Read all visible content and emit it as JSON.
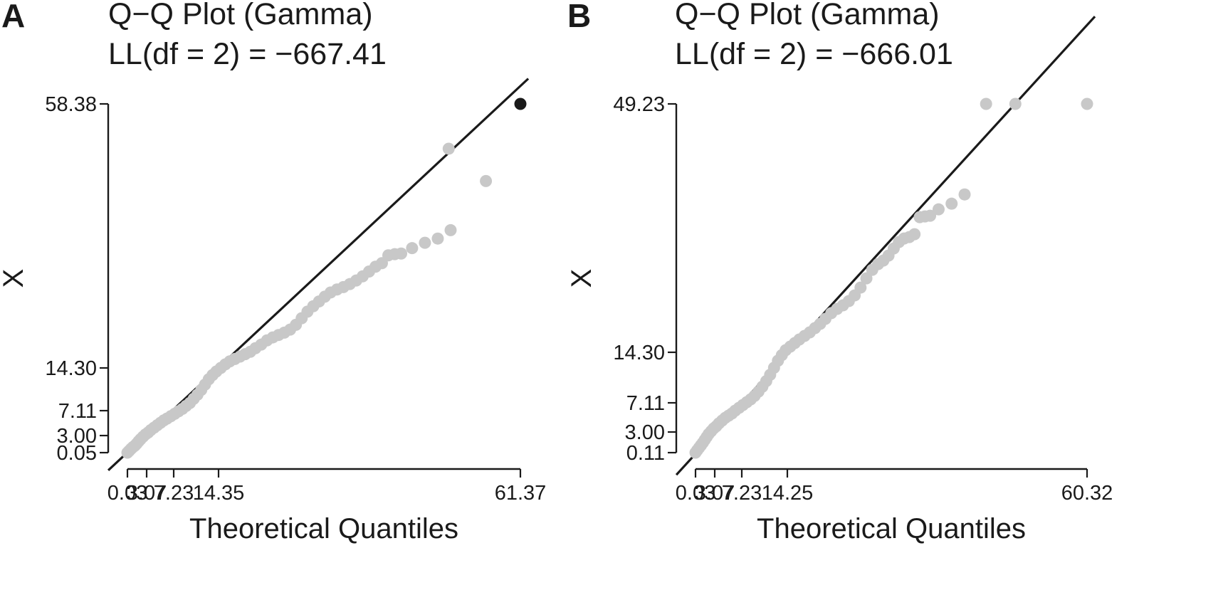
{
  "chart_data": [
    {
      "type": "scatter",
      "panel_label": "A",
      "title": "Q−Q Plot (Gamma)",
      "subtitle": "LL(df = 2) = −667.41",
      "xlabel": "Theoretical Quantiles",
      "ylabel": "X",
      "xlim": [
        0.03,
        61.37
      ],
      "ylim": [
        0.05,
        58.38
      ],
      "x_ticks": [
        0.03,
        3.07,
        7.23,
        14.35,
        61.37
      ],
      "x_tick_labels": [
        "0.03",
        "3.07",
        "7.23",
        "14.35",
        "61.37"
      ],
      "y_ticks": [
        0.05,
        3.0,
        7.11,
        14.3,
        58.38
      ],
      "y_tick_labels": [
        "0.05",
        "3.00",
        "7.11",
        "14.30",
        "58.38"
      ],
      "reference_line": "y = x",
      "point_color": "#c8c8c8",
      "highlight_color": "#1a1a1a",
      "highlight_points": [
        [
          61.37,
          58.38
        ]
      ],
      "points": [
        [
          0.03,
          0.05
        ],
        [
          0.3,
          0.35
        ],
        [
          0.6,
          0.7
        ],
        [
          0.9,
          1.0
        ],
        [
          1.2,
          1.25
        ],
        [
          1.5,
          1.6
        ],
        [
          1.8,
          2.0
        ],
        [
          2.1,
          2.35
        ],
        [
          2.5,
          2.8
        ],
        [
          2.9,
          3.2
        ],
        [
          3.3,
          3.5
        ],
        [
          3.7,
          3.9
        ],
        [
          4.2,
          4.3
        ],
        [
          4.7,
          4.7
        ],
        [
          5.2,
          5.1
        ],
        [
          5.7,
          5.5
        ],
        [
          6.2,
          5.8
        ],
        [
          6.8,
          6.2
        ],
        [
          7.4,
          6.6
        ],
        [
          8.0,
          7.0
        ],
        [
          8.6,
          7.4
        ],
        [
          9.2,
          7.9
        ],
        [
          9.8,
          8.4
        ],
        [
          10.4,
          9.1
        ],
        [
          11.0,
          9.8
        ],
        [
          11.6,
          10.6
        ],
        [
          12.2,
          11.5
        ],
        [
          12.8,
          12.4
        ],
        [
          13.4,
          13.1
        ],
        [
          14.0,
          13.7
        ],
        [
          14.7,
          14.3
        ],
        [
          15.4,
          14.9
        ],
        [
          16.1,
          15.4
        ],
        [
          16.9,
          15.8
        ],
        [
          17.7,
          16.2
        ],
        [
          18.5,
          16.6
        ],
        [
          19.3,
          17.0
        ],
        [
          20.1,
          17.6
        ],
        [
          21.0,
          18.2
        ],
        [
          21.9,
          18.9
        ],
        [
          22.8,
          19.4
        ],
        [
          23.7,
          19.8
        ],
        [
          24.6,
          20.2
        ],
        [
          25.5,
          20.7
        ],
        [
          26.4,
          21.5
        ],
        [
          27.3,
          22.6
        ],
        [
          28.2,
          23.7
        ],
        [
          29.1,
          24.6
        ],
        [
          30.0,
          25.4
        ],
        [
          30.9,
          26.2
        ],
        [
          31.8,
          26.9
        ],
        [
          32.8,
          27.4
        ],
        [
          33.8,
          27.8
        ],
        [
          34.8,
          28.3
        ],
        [
          35.8,
          28.9
        ],
        [
          36.8,
          29.6
        ],
        [
          37.8,
          30.4
        ],
        [
          38.8,
          31.2
        ],
        [
          39.8,
          31.8
        ],
        [
          40.8,
          33.1
        ],
        [
          41.8,
          33.3
        ],
        [
          42.8,
          33.4
        ],
        [
          44.5,
          34.3
        ],
        [
          46.5,
          35.2
        ],
        [
          48.5,
          35.9
        ],
        [
          50.5,
          37.3
        ],
        [
          56.0,
          45.5
        ],
        [
          50.2,
          50.9
        ]
      ]
    },
    {
      "type": "scatter",
      "panel_label": "B",
      "title": "Q−Q Plot (Gamma)",
      "subtitle": "LL(df = 2) = −666.01",
      "xlabel": "Theoretical Quantiles",
      "ylabel": "X",
      "xlim": [
        0.03,
        60.32
      ],
      "ylim": [
        0.11,
        49.23
      ],
      "x_ticks": [
        0.03,
        3.07,
        7.23,
        14.25,
        60.32
      ],
      "x_tick_labels": [
        "0.03",
        "3.07",
        "7.23",
        "14.25",
        "60.32"
      ],
      "y_ticks": [
        0.11,
        3.0,
        7.11,
        14.3,
        49.23
      ],
      "y_tick_labels": [
        "0.11",
        "3.00",
        "7.11",
        "14.30",
        "49.23"
      ],
      "reference_line": "y = x",
      "point_color": "#c8c8c8",
      "highlight_color": "#1a1a1a",
      "highlight_points": [],
      "points": [
        [
          0.03,
          0.11
        ],
        [
          0.3,
          0.45
        ],
        [
          0.6,
          0.8
        ],
        [
          0.9,
          1.15
        ],
        [
          1.2,
          1.5
        ],
        [
          1.5,
          1.9
        ],
        [
          1.8,
          2.3
        ],
        [
          2.1,
          2.7
        ],
        [
          2.5,
          3.1
        ],
        [
          2.9,
          3.5
        ],
        [
          3.3,
          3.8
        ],
        [
          3.7,
          4.2
        ],
        [
          4.2,
          4.6
        ],
        [
          4.7,
          5.0
        ],
        [
          5.2,
          5.3
        ],
        [
          5.7,
          5.6
        ],
        [
          6.2,
          6.0
        ],
        [
          6.8,
          6.4
        ],
        [
          7.4,
          6.8
        ],
        [
          8.0,
          7.2
        ],
        [
          8.6,
          7.6
        ],
        [
          9.2,
          8.1
        ],
        [
          9.8,
          8.7
        ],
        [
          10.4,
          9.4
        ],
        [
          11.0,
          10.2
        ],
        [
          11.6,
          11.1
        ],
        [
          12.2,
          12.1
        ],
        [
          12.8,
          13.1
        ],
        [
          13.4,
          13.9
        ],
        [
          14.0,
          14.6
        ],
        [
          14.7,
          15.1
        ],
        [
          15.4,
          15.6
        ],
        [
          16.1,
          16.1
        ],
        [
          16.9,
          16.6
        ],
        [
          17.7,
          17.1
        ],
        [
          18.5,
          17.7
        ],
        [
          19.3,
          18.3
        ],
        [
          20.1,
          19.0
        ],
        [
          21.0,
          19.8
        ],
        [
          21.9,
          20.4
        ],
        [
          22.8,
          20.9
        ],
        [
          23.7,
          21.5
        ],
        [
          24.6,
          22.3
        ],
        [
          25.5,
          23.4
        ],
        [
          26.4,
          24.7
        ],
        [
          27.3,
          25.9
        ],
        [
          28.2,
          26.7
        ],
        [
          29.0,
          27.2
        ],
        [
          29.8,
          27.9
        ],
        [
          30.6,
          28.9
        ],
        [
          31.4,
          29.8
        ],
        [
          32.2,
          30.3
        ],
        [
          33.0,
          30.5
        ],
        [
          33.8,
          30.9
        ],
        [
          34.6,
          33.3
        ],
        [
          35.4,
          33.4
        ],
        [
          36.2,
          33.5
        ],
        [
          37.5,
          34.4
        ],
        [
          39.5,
          35.2
        ],
        [
          41.5,
          36.5
        ],
        [
          44.8,
          49.23
        ],
        [
          49.3,
          49.23
        ],
        [
          60.32,
          49.23
        ]
      ]
    }
  ]
}
